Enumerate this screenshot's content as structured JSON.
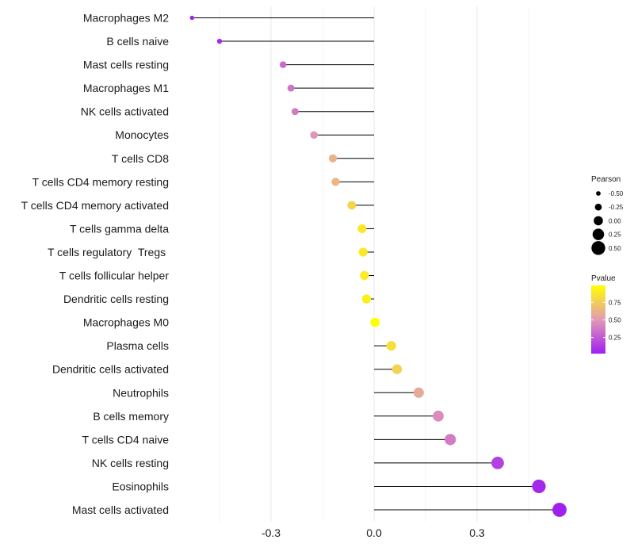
{
  "chart_data": {
    "type": "lollipop",
    "title": "",
    "xlabel": "",
    "ylabel": "",
    "xlim": [
      -0.53,
      0.56
    ],
    "xticks": [
      -0.3,
      0.0,
      0.3
    ],
    "xtick_labels": [
      "-0.3",
      "0.0",
      "0.3"
    ],
    "grid": true,
    "points": [
      {
        "label": "Macrophages M2",
        "pearson": -0.53,
        "pvalue": 0.02
      },
      {
        "label": "B cells naive",
        "pearson": -0.45,
        "pvalue": 0.05
      },
      {
        "label": "Mast cells resting",
        "pearson": -0.265,
        "pvalue": 0.32
      },
      {
        "label": "Macrophages M1",
        "pearson": -0.242,
        "pvalue": 0.35
      },
      {
        "label": "NK cells activated",
        "pearson": -0.23,
        "pvalue": 0.38
      },
      {
        "label": "Monocytes",
        "pearson": -0.175,
        "pvalue": 0.48
      },
      {
        "label": "T cells CD8",
        "pearson": -0.12,
        "pvalue": 0.62
      },
      {
        "label": "T cells CD4 memory resting",
        "pearson": -0.112,
        "pvalue": 0.64
      },
      {
        "label": "T cells CD4 memory activated",
        "pearson": -0.065,
        "pvalue": 0.79
      },
      {
        "label": "T cells gamma delta",
        "pearson": -0.035,
        "pvalue": 0.88
      },
      {
        "label": "T cells regulatory  Tregs ",
        "pearson": -0.032,
        "pvalue": 0.89
      },
      {
        "label": "T cells follicular helper",
        "pearson": -0.028,
        "pvalue": 0.9
      },
      {
        "label": "Dendritic cells resting",
        "pearson": -0.022,
        "pvalue": 0.92
      },
      {
        "label": "Macrophages M0",
        "pearson": 0.003,
        "pvalue": 0.99
      },
      {
        "label": "Plasma cells",
        "pearson": 0.05,
        "pvalue": 0.84
      },
      {
        "label": "Dendritic cells activated",
        "pearson": 0.067,
        "pvalue": 0.78
      },
      {
        "label": "Neutrophils",
        "pearson": 0.13,
        "pvalue": 0.58
      },
      {
        "label": "B cells memory",
        "pearson": 0.187,
        "pvalue": 0.45
      },
      {
        "label": "T cells CD4 naive",
        "pearson": 0.222,
        "pvalue": 0.38
      },
      {
        "label": "NK cells resting",
        "pearson": 0.36,
        "pvalue": 0.15
      },
      {
        "label": "Eosinophils",
        "pearson": 0.48,
        "pvalue": 0.05
      },
      {
        "label": "Mast cells activated",
        "pearson": 0.54,
        "pvalue": 0.02
      }
    ],
    "legend_size": {
      "title": "Pearson",
      "values": [
        -0.5,
        -0.25,
        0.0,
        0.25,
        0.5
      ],
      "labels": [
        "-0.50",
        "-0.25",
        "0.00",
        "0.25",
        "0.50"
      ]
    },
    "legend_color": {
      "title": "Pvalue",
      "ticks": [
        0.75,
        0.5,
        0.25
      ],
      "tick_labels": [
        "0.75",
        "0.50",
        "0.25"
      ],
      "range": [
        0.02,
        0.99
      ],
      "colors": {
        "low": "#a020f0",
        "mid": "#e39ab6",
        "high": "#ffff00"
      }
    },
    "colors": {
      "stem": "#000000",
      "grid": "#ebebeb"
    }
  }
}
